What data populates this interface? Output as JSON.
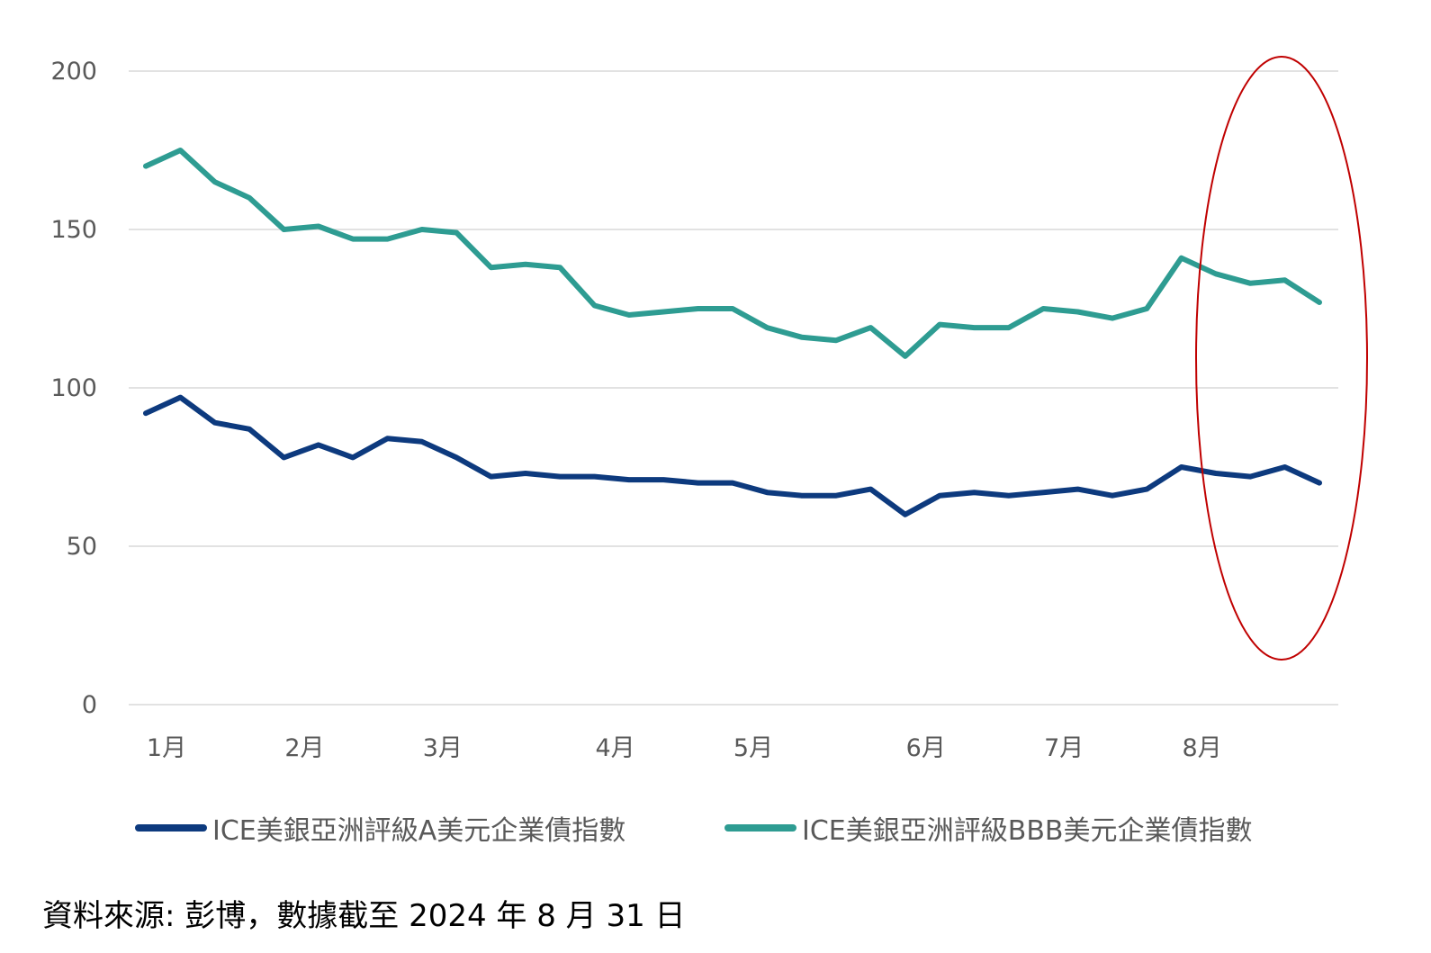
{
  "chart_data": {
    "type": "line",
    "y_ticks": [
      0,
      50,
      100,
      150,
      200
    ],
    "ylim": [
      0,
      200
    ],
    "grid": true,
    "x_labels": [
      {
        "label": "1月",
        "index": 0.6
      },
      {
        "label": "2月",
        "index": 4.6
      },
      {
        "label": "3月",
        "index": 8.6
      },
      {
        "label": "4月",
        "index": 13.6
      },
      {
        "label": "5月",
        "index": 17.6
      },
      {
        "label": "6月",
        "index": 22.6
      },
      {
        "label": "7月",
        "index": 26.6
      },
      {
        "label": "8月",
        "index": 30.6
      }
    ],
    "series": [
      {
        "name": "ICE美銀亞洲評級A美元企業債指數",
        "color": "#0d3a7e",
        "values": [
          92,
          97,
          89,
          87,
          78,
          82,
          78,
          84,
          83,
          78,
          72,
          73,
          72,
          72,
          71,
          71,
          70,
          70,
          67,
          66,
          66,
          68,
          60,
          66,
          67,
          66,
          67,
          68,
          66,
          68,
          75,
          73,
          72,
          75,
          70
        ]
      },
      {
        "name": "ICE美銀亞洲評級BBB美元企業債指數",
        "color": "#2e9c92",
        "values": [
          170,
          175,
          165,
          160,
          150,
          151,
          147,
          147,
          150,
          149,
          138,
          139,
          138,
          126,
          123,
          124,
          125,
          125,
          119,
          116,
          115,
          119,
          110,
          120,
          119,
          119,
          125,
          124,
          122,
          125,
          141,
          136,
          133,
          134,
          127
        ]
      }
    ],
    "annotation": {
      "shape": "ellipse",
      "color": "#c00000"
    },
    "legend_position": "bottom"
  },
  "source_note": "資料來源:  彭博，數據截至 2024 年 8 月 31 日"
}
